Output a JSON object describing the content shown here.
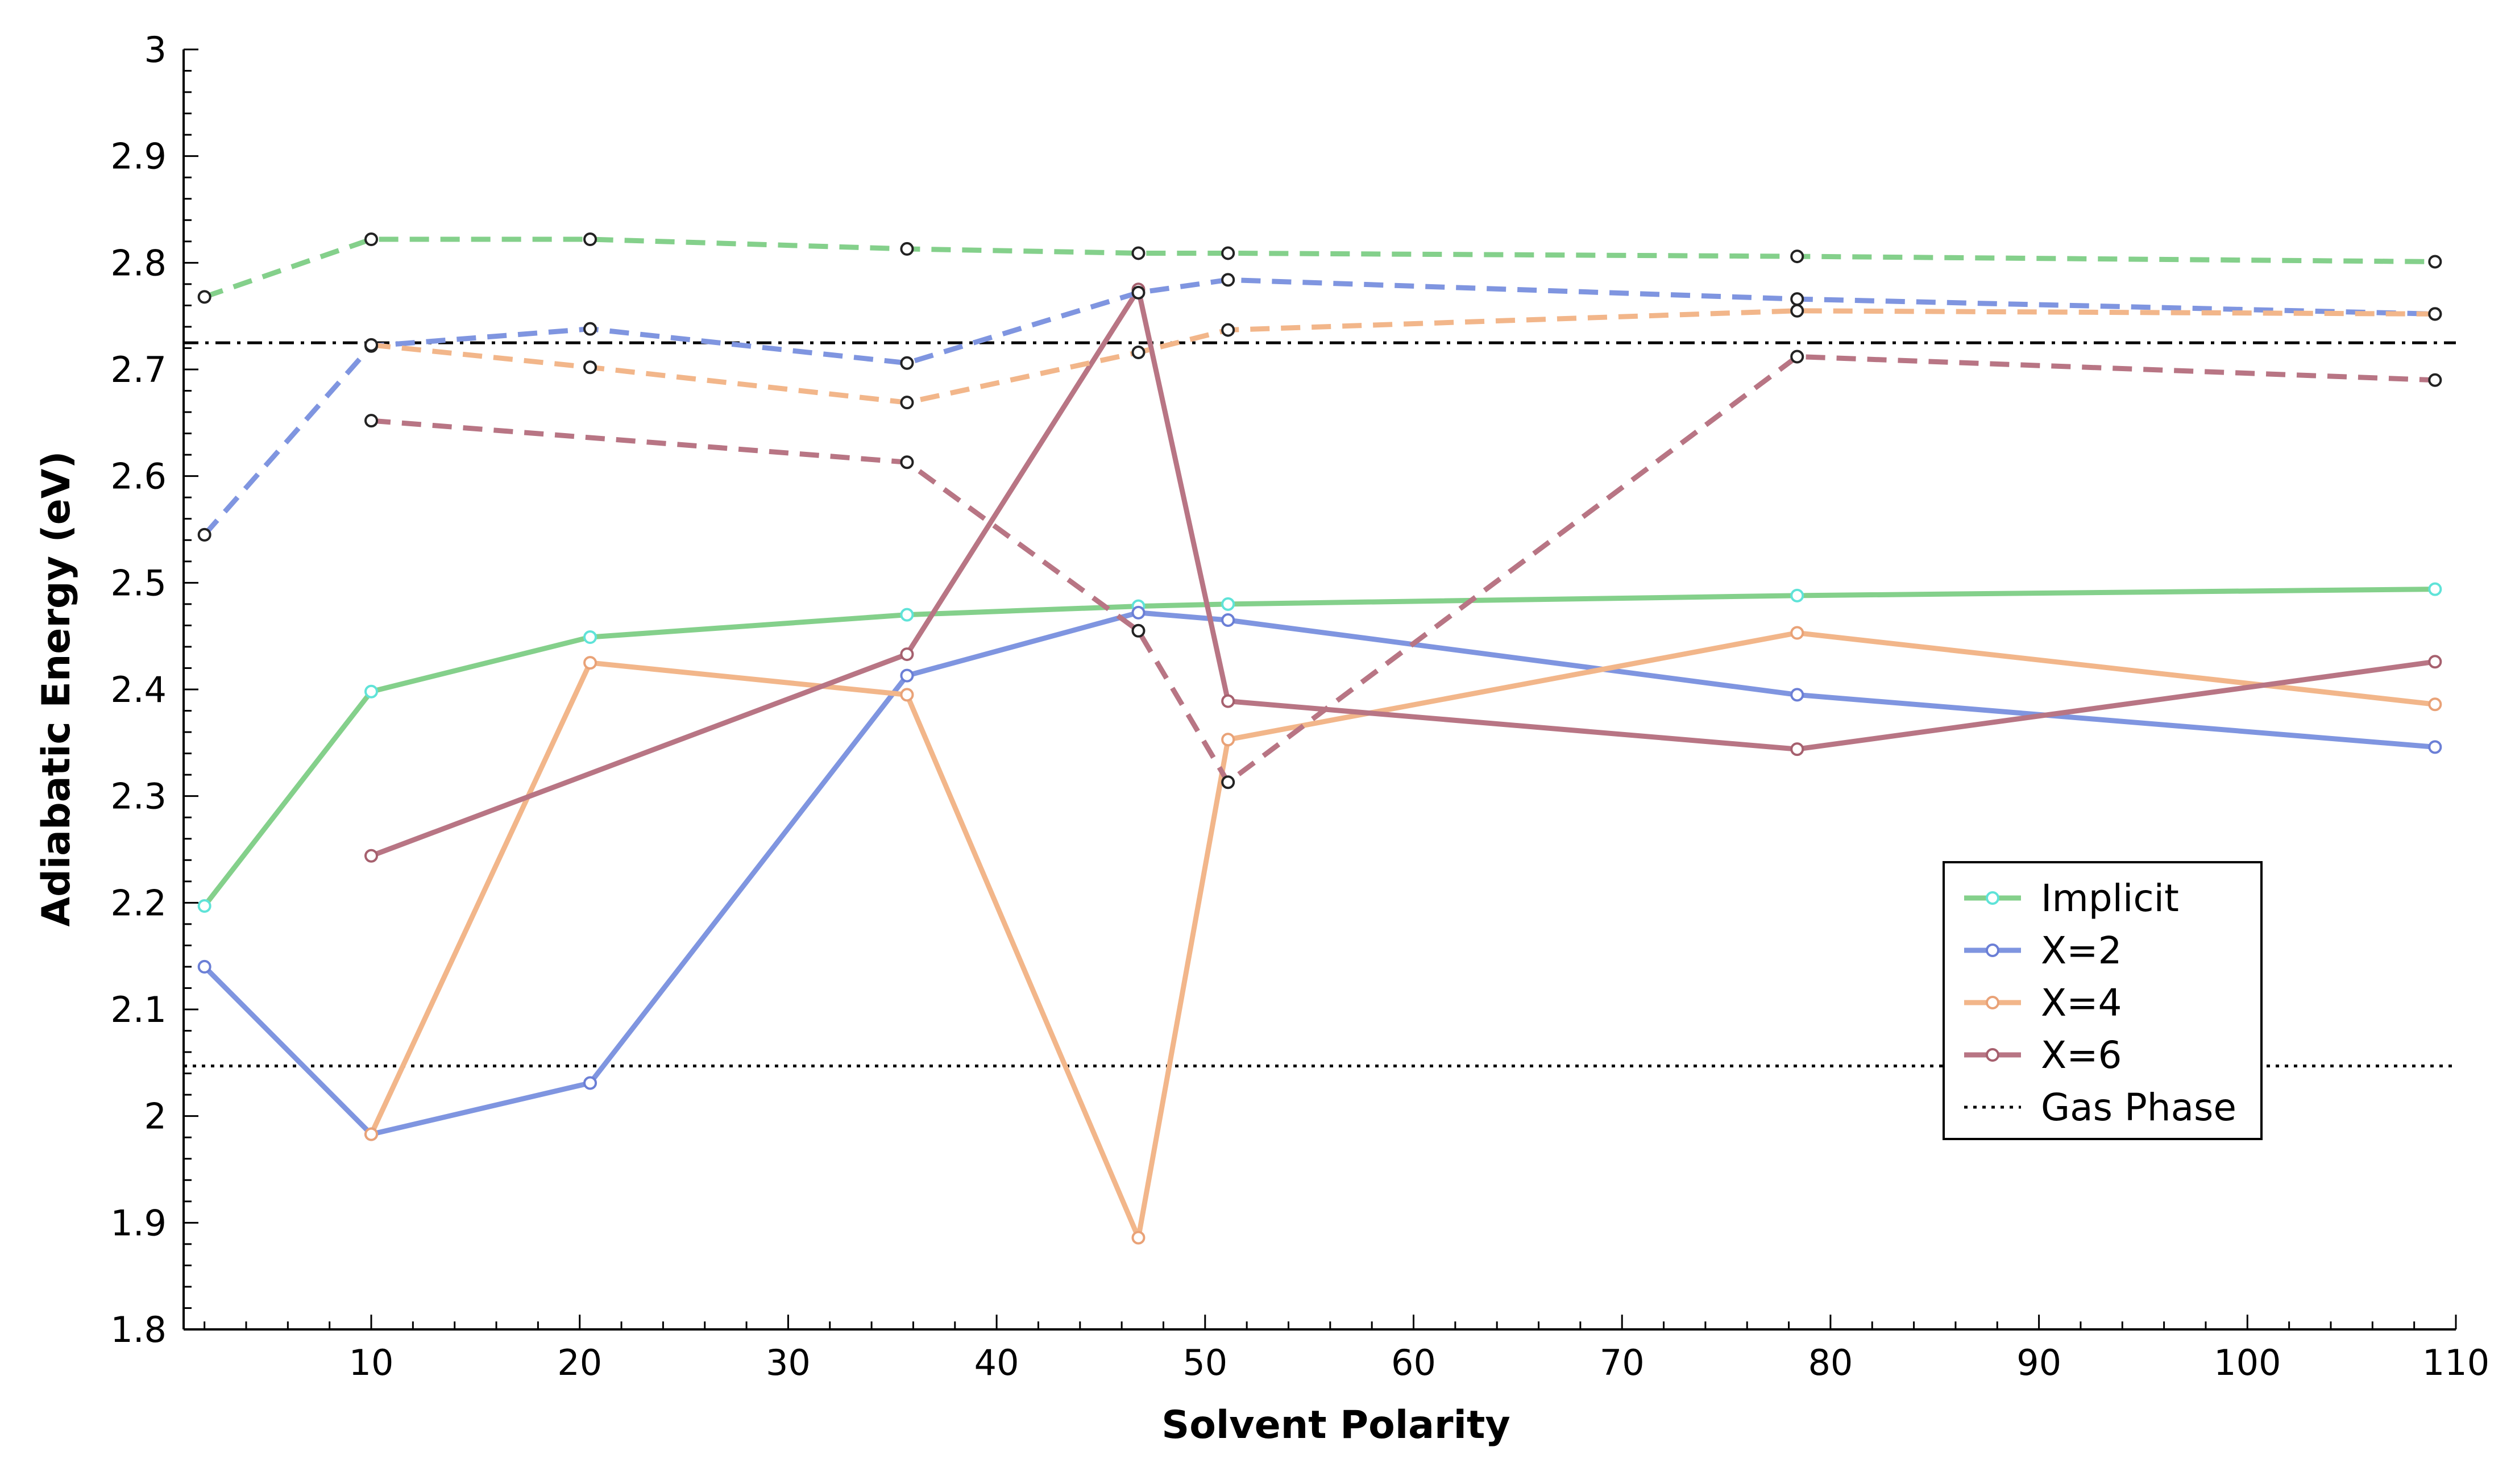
{
  "chart_data": {
    "type": "line",
    "title": "",
    "xlabel": "Solvent Polarity",
    "ylabel": "Adiabatic Energy (eV)",
    "xlim": [
      1,
      110
    ],
    "ylim": [
      1.8,
      3.0
    ],
    "xticks": [
      10,
      20,
      30,
      40,
      50,
      60,
      70,
      80,
      90,
      100,
      110
    ],
    "yticks": [
      1.8,
      1.9,
      2.0,
      2.1,
      2.2,
      2.3,
      2.4,
      2.5,
      2.6,
      2.7,
      2.8,
      2.9,
      3.0
    ],
    "xtick_labels": [
      "10",
      "20",
      "30",
      "40",
      "50",
      "60",
      "70",
      "80",
      "90",
      "100",
      "110"
    ],
    "ytick_labels": [
      "1.8",
      "1.9",
      "2",
      "2.1",
      "2.2",
      "2.3",
      "2.4",
      "2.5",
      "2.6",
      "2.7",
      "2.8",
      "2.9",
      "3"
    ],
    "legend_position": "lower-right",
    "series": [
      {
        "name": "Implicit",
        "color": "#84d08b",
        "marker_color": "#5fe3d8",
        "style": "solid",
        "x": [
          2.0,
          10.0,
          20.5,
          35.7,
          46.8,
          51.1,
          78.4,
          109.0
        ],
        "y": [
          2.197,
          2.398,
          2.449,
          2.47,
          2.478,
          2.48,
          2.488,
          2.494
        ]
      },
      {
        "name": "X=2",
        "color": "#7f95e0",
        "marker_color": "#6b7fd6",
        "style": "solid",
        "x": [
          2.0,
          10.0,
          20.5,
          35.7,
          46.8,
          51.1,
          78.4,
          109.0
        ],
        "y": [
          2.14,
          1.983,
          2.031,
          2.413,
          2.472,
          2.465,
          2.395,
          2.346
        ]
      },
      {
        "name": "X=4",
        "color": "#f2b68a",
        "marker_color": "#e9a277",
        "style": "solid",
        "x": [
          10.0,
          20.5,
          35.7,
          46.8,
          51.1,
          78.4,
          109.0
        ],
        "y": [
          1.983,
          2.425,
          2.395,
          1.886,
          2.353,
          2.453,
          2.386
        ]
      },
      {
        "name": "X=6",
        "color": "#b87584",
        "marker_color": "#a6606e",
        "style": "solid",
        "x": [
          10.0,
          35.7,
          46.8,
          51.1,
          78.4,
          109.0
        ],
        "y": [
          2.244,
          2.433,
          2.775,
          2.389,
          2.344,
          2.426
        ]
      },
      {
        "name": "Implicit (dashed)",
        "color": "#84d08b",
        "marker_color": "#84d08b",
        "style": "dashed",
        "in_legend": false,
        "x": [
          2.0,
          10.0,
          20.5,
          35.7,
          46.8,
          51.1,
          78.4,
          109.0
        ],
        "y": [
          2.768,
          2.822,
          2.822,
          2.813,
          2.809,
          2.809,
          2.806,
          2.801
        ]
      },
      {
        "name": "X=2 (dashed)",
        "color": "#7f95e0",
        "marker_color": "#7f95e0",
        "style": "dashed",
        "in_legend": false,
        "x": [
          2.0,
          10.0,
          20.5,
          35.7,
          46.8,
          51.1,
          78.4,
          109.0
        ],
        "y": [
          2.545,
          2.722,
          2.738,
          2.706,
          2.772,
          2.784,
          2.766,
          2.752
        ]
      },
      {
        "name": "X=4 (dashed)",
        "color": "#f2b68a",
        "marker_color": "#f2b68a",
        "style": "dashed",
        "in_legend": false,
        "x": [
          10.0,
          20.5,
          35.7,
          46.8,
          51.1,
          78.4,
          109.0
        ],
        "y": [
          2.723,
          2.702,
          2.669,
          2.716,
          2.737,
          2.755,
          2.752
        ]
      },
      {
        "name": "X=6 (dashed)",
        "color": "#b87584",
        "marker_color": "#b87584",
        "style": "dashed",
        "in_legend": false,
        "x": [
          10.0,
          35.7,
          46.8,
          51.1,
          78.4,
          109.0
        ],
        "y": [
          2.652,
          2.613,
          2.455,
          2.313,
          2.712,
          2.69
        ]
      }
    ],
    "reference_lines": [
      {
        "name": "Gas Phase",
        "y": 2.047,
        "style": "dotted",
        "color": "#000000",
        "in_legend": true
      },
      {
        "name": "Gas Phase (dash-dot)",
        "y": 2.725,
        "style": "dashdot",
        "color": "#000000",
        "in_legend": false
      }
    ]
  }
}
